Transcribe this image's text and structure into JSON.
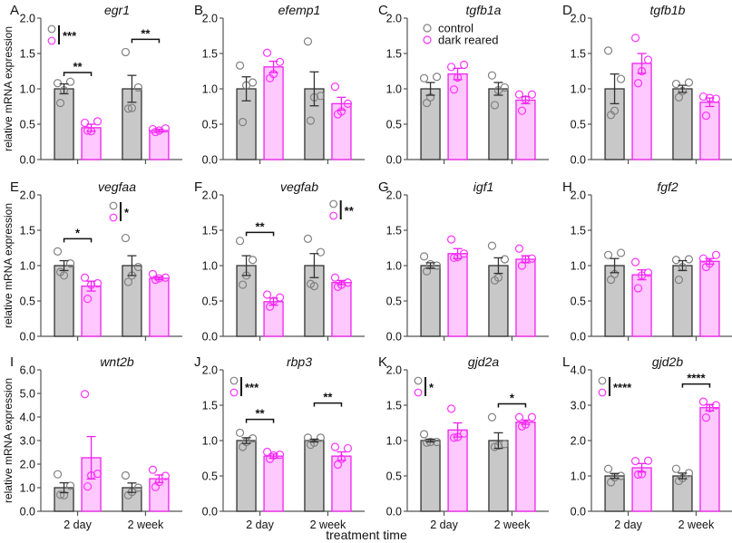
{
  "chart_data": {
    "type": "bar",
    "xlabel": "treatment time",
    "ylabel": "relative mRNA expression",
    "categories": [
      "2 day",
      "2 week"
    ],
    "legend": {
      "placement": "top-left",
      "entries": [
        {
          "name": "control",
          "color": "#808080"
        },
        {
          "name": "dark reared",
          "color": "#ff33ff"
        }
      ]
    },
    "colors": {
      "control_fill": "#c8c8c8",
      "control_stroke": "#333333",
      "control_point": "#808080",
      "dark_fill": "#ffc8ff",
      "dark_stroke": "#ee22ee",
      "dark_point": "#ff33ff"
    },
    "panels": [
      {
        "letter": "A",
        "gene": "egr1",
        "ylim": [
          0,
          2
        ],
        "yticks": [
          "0.0",
          "0.5",
          "1.0",
          "1.5",
          "2.0"
        ],
        "series": [
          {
            "name": "control",
            "values": [
              1.0,
              1.0
            ],
            "sem": [
              0.07,
              0.19
            ],
            "points": [
              [
                1.08,
                1.1,
                0.98,
                0.8
              ],
              [
                1.52,
                1.02,
                0.73,
                0.72
              ]
            ]
          },
          {
            "name": "dark reared",
            "values": [
              0.45,
              0.41
            ],
            "sem": [
              0.05,
              0.02
            ],
            "points": [
              [
                0.52,
                0.54,
                0.4,
                0.41
              ],
              [
                0.43,
                0.44,
                0.41,
                0.39
              ]
            ]
          }
        ],
        "interaction_sig": "***",
        "pair_sig": [
          {
            "category": "2 day",
            "label": "**",
            "y": 1.23
          },
          {
            "category": "2 week",
            "label": "**",
            "y": 1.7
          }
        ]
      },
      {
        "letter": "B",
        "gene": "efemp1",
        "ylim": [
          0,
          2
        ],
        "yticks": [
          "0.0",
          "0.5",
          "1.0",
          "1.5",
          "2.0"
        ],
        "series": [
          {
            "name": "control",
            "values": [
              1.0,
              1.0
            ],
            "sem": [
              0.17,
              0.24
            ],
            "points": [
              [
                1.33,
                1.09,
                1.05,
                0.53
              ],
              [
                1.67,
                0.9,
                0.88,
                0.55
              ]
            ]
          },
          {
            "name": "dark reared",
            "values": [
              1.31,
              0.79
            ],
            "sem": [
              0.08,
              0.09
            ],
            "points": [
              [
                1.51,
                1.38,
                1.21,
                1.15
              ],
              [
                1.03,
                0.79,
                0.68,
                0.64
              ]
            ]
          }
        ],
        "interaction_sig": "",
        "pair_sig": []
      },
      {
        "letter": "C",
        "gene": "tgfb1a",
        "ylim": [
          0,
          2
        ],
        "yticks": [
          "0.0",
          "0.5",
          "1.0",
          "1.5",
          "2.0"
        ],
        "series": [
          {
            "name": "control",
            "values": [
              1.0,
              1.0
            ],
            "sem": [
              0.09,
              0.09
            ],
            "points": [
              [
                1.15,
                1.17,
                0.88,
                0.8
              ],
              [
                1.19,
                1.02,
                0.98,
                0.77
              ]
            ]
          },
          {
            "name": "dark reared",
            "values": [
              1.21,
              0.84
            ],
            "sem": [
              0.08,
              0.05
            ],
            "points": [
              [
                1.31,
                1.34,
                1.16,
                0.99
              ],
              [
                0.92,
                0.92,
                0.85,
                0.69
              ]
            ]
          }
        ],
        "interaction_sig": "",
        "pair_sig": []
      },
      {
        "letter": "D",
        "gene": "tgfb1b",
        "ylim": [
          0,
          2
        ],
        "yticks": [
          "0.0",
          "0.5",
          "1.0",
          "1.5",
          "2.0"
        ],
        "series": [
          {
            "name": "control",
            "values": [
              1.0,
              1.0
            ],
            "sem": [
              0.21,
              0.05
            ],
            "points": [
              [
                1.54,
                1.14,
                0.69,
                0.63
              ],
              [
                1.07,
                1.09,
                0.97,
                0.88
              ]
            ]
          },
          {
            "name": "dark reared",
            "values": [
              1.36,
              0.81
            ],
            "sem": [
              0.14,
              0.06
            ],
            "points": [
              [
                1.72,
                1.41,
                1.25,
                1.08
              ],
              [
                0.89,
                0.86,
                0.87,
                0.62
              ]
            ]
          }
        ],
        "interaction_sig": "",
        "pair_sig": []
      },
      {
        "letter": "E",
        "gene": "vegfaa",
        "ylim": [
          0,
          2
        ],
        "yticks": [
          "0.0",
          "0.5",
          "1.0",
          "1.5",
          "2.0"
        ],
        "series": [
          {
            "name": "control",
            "values": [
              1.0,
              1.0
            ],
            "sem": [
              0.07,
              0.14
            ],
            "points": [
              [
                1.2,
                1.03,
                0.86,
                0.91
              ],
              [
                1.39,
                0.98,
                0.86,
                0.77
              ]
            ]
          },
          {
            "name": "dark reared",
            "values": [
              0.71,
              0.82
            ],
            "sem": [
              0.07,
              0.02
            ],
            "points": [
              [
                0.83,
                0.75,
                0.73,
                0.53
              ],
              [
                0.88,
                0.83,
                0.82,
                0.8
              ]
            ]
          }
        ],
        "interaction_sig": "*",
        "pair_sig": [
          {
            "category": "2 day",
            "label": "*",
            "y": 1.38
          }
        ]
      },
      {
        "letter": "F",
        "gene": "vegfab",
        "ylim": [
          0,
          2
        ],
        "yticks": [
          "0.0",
          "0.5",
          "1.0",
          "1.5",
          "2.0"
        ],
        "series": [
          {
            "name": "control",
            "values": [
              1.0,
              1.0
            ],
            "sem": [
              0.14,
              0.17
            ],
            "points": [
              [
                1.35,
                1.08,
                0.86,
                0.73
              ],
              [
                1.38,
                1.19,
                0.71,
                0.74
              ]
            ]
          },
          {
            "name": "dark reared",
            "values": [
              0.49,
              0.76
            ],
            "sem": [
              0.05,
              0.03
            ],
            "points": [
              [
                0.59,
                0.55,
                0.5,
                0.42
              ],
              [
                0.83,
                0.76,
                0.73,
                0.7
              ]
            ]
          }
        ],
        "interaction_sig": "**",
        "pair_sig": [
          {
            "category": "2 day",
            "label": "**",
            "y": 1.47
          }
        ]
      },
      {
        "letter": "G",
        "gene": "igf1",
        "ylim": [
          0,
          2
        ],
        "yticks": [
          "0.0",
          "0.5",
          "1.0",
          "1.5",
          "2.0"
        ],
        "series": [
          {
            "name": "control",
            "values": [
              1.0,
              1.0
            ],
            "sem": [
              0.04,
              0.11
            ],
            "points": [
              [
                1.13,
                1.0,
                1.02,
                0.92
              ],
              [
                1.28,
                1.09,
                0.83,
                0.79
              ]
            ]
          },
          {
            "name": "dark reared",
            "values": [
              1.17,
              1.09
            ],
            "sem": [
              0.07,
              0.05
            ],
            "points": [
              [
                1.37,
                1.17,
                1.12,
                1.11
              ],
              [
                1.24,
                1.1,
                1.09,
                1.0
              ]
            ]
          }
        ],
        "interaction_sig": "",
        "pair_sig": []
      },
      {
        "letter": "H",
        "gene": "fgf2",
        "ylim": [
          0,
          2
        ],
        "yticks": [
          "0.0",
          "0.5",
          "1.0",
          "1.5",
          "2.0"
        ],
        "series": [
          {
            "name": "control",
            "values": [
              1.0,
              1.0
            ],
            "sem": [
              0.1,
              0.07
            ],
            "points": [
              [
                1.15,
                1.18,
                0.88,
                0.8
              ],
              [
                1.08,
                1.09,
                0.98,
                0.8
              ]
            ]
          },
          {
            "name": "dark reared",
            "values": [
              0.87,
              1.06
            ],
            "sem": [
              0.07,
              0.04
            ],
            "points": [
              [
                1.05,
                0.9,
                0.86,
                0.68
              ],
              [
                1.1,
                1.15,
                1.03,
                0.98
              ]
            ]
          }
        ],
        "interaction_sig": "",
        "pair_sig": []
      },
      {
        "letter": "I",
        "gene": "wnt2b",
        "ylim": [
          0,
          6
        ],
        "yticks": [
          "0.0",
          "1.0",
          "2.0",
          "3.0",
          "4.0",
          "5.0",
          "6.0"
        ],
        "series": [
          {
            "name": "control",
            "values": [
              1.0,
              1.0
            ],
            "sem": [
              0.21,
              0.2
            ],
            "points": [
              [
                1.57,
                1.08,
                0.68,
                0.7
              ],
              [
                1.52,
                1.0,
                0.82,
                0.68
              ]
            ]
          },
          {
            "name": "dark reared",
            "values": [
              2.27,
              1.38
            ],
            "sem": [
              0.9,
              0.16
            ],
            "points": [
              [
                4.97,
                1.59,
                1.52,
                1.05
              ],
              [
                1.76,
                1.5,
                1.24,
                1.03
              ]
            ]
          }
        ],
        "interaction_sig": "",
        "pair_sig": []
      },
      {
        "letter": "J",
        "gene": "rbp3",
        "ylim": [
          0,
          2
        ],
        "yticks": [
          "0.0",
          "0.5",
          "1.0",
          "1.5",
          "2.0"
        ],
        "series": [
          {
            "name": "control",
            "values": [
              1.0,
              1.0
            ],
            "sem": [
              0.04,
              0.02
            ],
            "points": [
              [
                1.11,
                1.03,
                0.98,
                0.91
              ],
              [
                1.04,
                1.04,
                0.97,
                0.94
              ]
            ]
          },
          {
            "name": "dark reared",
            "values": [
              0.78,
              0.78
            ],
            "sem": [
              0.03,
              0.06
            ],
            "points": [
              [
                0.84,
                0.8,
                0.79,
                0.74
              ],
              [
                0.91,
                0.89,
                0.74,
                0.66
              ]
            ]
          }
        ],
        "interaction_sig": "***",
        "pair_sig": [
          {
            "category": "2 day",
            "label": "**",
            "y": 1.3
          },
          {
            "category": "2 week",
            "label": "**",
            "y": 1.53
          }
        ]
      },
      {
        "letter": "K",
        "gene": "gjd2a",
        "ylim": [
          0,
          2
        ],
        "yticks": [
          "0.0",
          "0.5",
          "1.0",
          "1.5",
          "2.0"
        ],
        "series": [
          {
            "name": "control",
            "values": [
              1.0,
              1.0
            ],
            "sem": [
              0.02,
              0.11
            ],
            "points": [
              [
                1.09,
                0.98,
                0.98,
                0.97
              ],
              [
                1.33,
                0.95,
                0.93,
                0.91
              ]
            ]
          },
          {
            "name": "dark reared",
            "values": [
              1.15,
              1.26
            ],
            "sem": [
              0.1,
              0.03
            ],
            "points": [
              [
                1.45,
                1.1,
                1.05,
                1.04
              ],
              [
                1.33,
                1.33,
                1.23,
                1.2
              ]
            ]
          }
        ],
        "interaction_sig": "*",
        "pair_sig": [
          {
            "category": "2 week",
            "label": "*",
            "y": 1.52
          }
        ]
      },
      {
        "letter": "L",
        "gene": "gjd2b",
        "ylim": [
          0,
          4
        ],
        "yticks": [
          "0.0",
          "1.0",
          "2.0",
          "3.0",
          "4.0"
        ],
        "series": [
          {
            "name": "control",
            "values": [
              1.0,
              1.0
            ],
            "sem": [
              0.07,
              0.08
            ],
            "points": [
              [
                1.2,
                1.0,
                0.96,
                0.82
              ],
              [
                1.2,
                1.08,
                0.94,
                0.86
              ]
            ]
          },
          {
            "name": "dark reared",
            "values": [
              1.23,
              2.93
            ],
            "sem": [
              0.12,
              0.09
            ],
            "points": [
              [
                1.42,
                1.43,
                1.05,
                1.04
              ],
              [
                3.1,
                3.0,
                2.92,
                2.65
              ]
            ]
          }
        ],
        "interaction_sig": "****",
        "pair_sig": [
          {
            "category": "2 week",
            "label": "****",
            "y": 3.6
          }
        ]
      }
    ]
  }
}
